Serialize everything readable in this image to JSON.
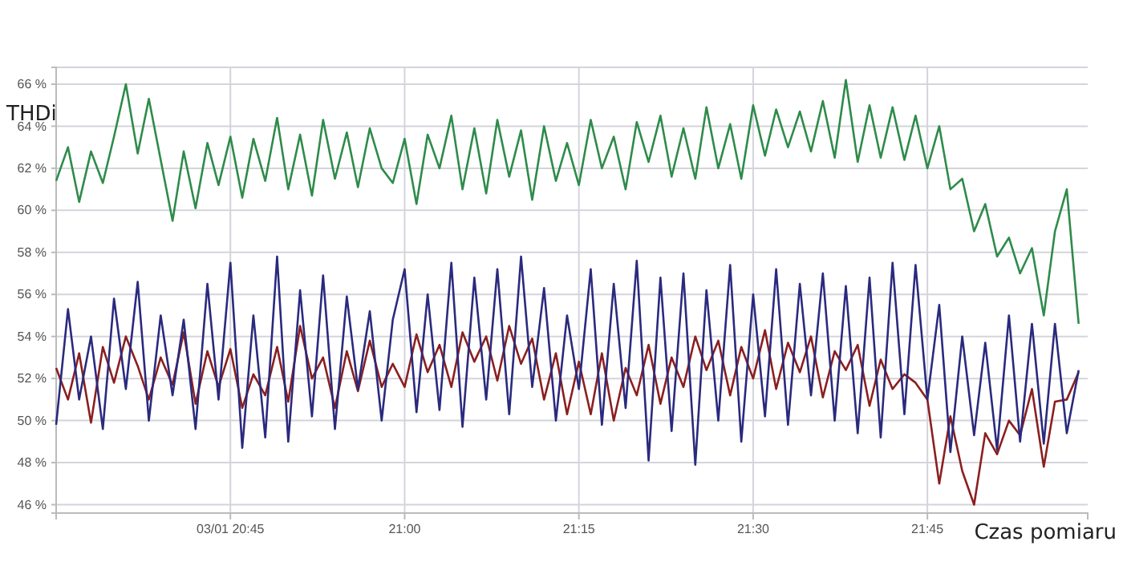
{
  "chart_data": {
    "type": "line",
    "ylabel": "THDi",
    "xlabel": "Czas pomiaru",
    "xlim": [
      20.5,
      21.98
    ],
    "ylim": [
      45.6,
      66.8
    ],
    "xticks": [
      {
        "value": 20.75,
        "label": "03/01 20:45"
      },
      {
        "value": 21,
        "label": "21:00"
      },
      {
        "value": 21.25,
        "label": "21:15"
      },
      {
        "value": 21.5,
        "label": "21:30"
      },
      {
        "value": 21.75,
        "label": "21:45"
      }
    ],
    "yticks": [
      {
        "value": 46,
        "label": "46 %"
      },
      {
        "value": 48,
        "label": "48 %"
      },
      {
        "value": 50,
        "label": "50 %"
      },
      {
        "value": 52,
        "label": "52 %"
      },
      {
        "value": 54,
        "label": "54 %"
      },
      {
        "value": 56,
        "label": "56 %"
      },
      {
        "value": 58,
        "label": "58 %"
      },
      {
        "value": 60,
        "label": "60 %"
      },
      {
        "value": 62,
        "label": "62 %"
      },
      {
        "value": 64,
        "label": "64 %"
      },
      {
        "value": 66,
        "label": "66 %"
      }
    ],
    "grid": true,
    "marker": "none",
    "line_style": "solid",
    "x": [
      20.5,
      20.517,
      20.533,
      20.55,
      20.567,
      20.583,
      20.6,
      20.617,
      20.633,
      20.65,
      20.667,
      20.683,
      20.7,
      20.717,
      20.733,
      20.75,
      20.767,
      20.783,
      20.8,
      20.817,
      20.833,
      20.85,
      20.867,
      20.883,
      20.9,
      20.917,
      20.933,
      20.95,
      20.967,
      20.983,
      21,
      21.017,
      21.033,
      21.05,
      21.067,
      21.083,
      21.1,
      21.117,
      21.133,
      21.15,
      21.167,
      21.183,
      21.2,
      21.217,
      21.233,
      21.25,
      21.267,
      21.283,
      21.3,
      21.317,
      21.333,
      21.35,
      21.367,
      21.383,
      21.4,
      21.417,
      21.433,
      21.45,
      21.467,
      21.483,
      21.5,
      21.517,
      21.533,
      21.55,
      21.567,
      21.583,
      21.6,
      21.617,
      21.633,
      21.65,
      21.667,
      21.683,
      21.7,
      21.717,
      21.733,
      21.75,
      21.767,
      21.783,
      21.8,
      21.817,
      21.833,
      21.85,
      21.867,
      21.883,
      21.9,
      21.917,
      21.933,
      21.95,
      21.967
    ],
    "series": [
      {
        "color": "#2e8b4a",
        "values": [
          61.4,
          63.0,
          60.4,
          62.8,
          61.3,
          63.5,
          66.0,
          62.7,
          65.3,
          62.4,
          59.5,
          62.8,
          60.1,
          63.2,
          61.2,
          63.5,
          60.6,
          63.4,
          61.4,
          64.4,
          61.0,
          63.6,
          60.7,
          64.3,
          61.5,
          63.7,
          61.1,
          63.9,
          62.0,
          61.3,
          63.4,
          60.3,
          63.6,
          62.0,
          64.5,
          61.0,
          63.9,
          60.8,
          64.3,
          61.6,
          63.8,
          60.5,
          64.0,
          61.4,
          63.2,
          61.2,
          64.3,
          62.0,
          63.5,
          61.0,
          64.2,
          62.3,
          64.5,
          61.6,
          63.9,
          61.5,
          64.9,
          62.0,
          64.1,
          61.5,
          65.0,
          62.6,
          64.8,
          63.0,
          64.7,
          62.8,
          65.2,
          62.5,
          66.2,
          62.3,
          65.0,
          62.5,
          64.9,
          62.4,
          64.5,
          62.0,
          64.0,
          61.0,
          61.5,
          59.0,
          60.3,
          57.8,
          58.7,
          57.0,
          58.2,
          55.0,
          59.0,
          61.0,
          54.6
        ]
      },
      {
        "color": "#8b1f1f",
        "values": [
          52.5,
          51.0,
          53.2,
          49.9,
          53.5,
          51.8,
          54.0,
          52.6,
          51.0,
          53.0,
          51.7,
          54.2,
          50.8,
          53.3,
          51.6,
          53.4,
          50.6,
          52.2,
          51.2,
          53.5,
          50.9,
          54.5,
          52.0,
          53.0,
          50.6,
          53.3,
          51.4,
          53.8,
          51.6,
          52.7,
          51.6,
          54.1,
          52.3,
          53.6,
          51.6,
          54.2,
          52.8,
          54.0,
          51.9,
          54.5,
          52.7,
          53.9,
          51.0,
          53.2,
          50.3,
          52.8,
          50.3,
          53.2,
          50.0,
          52.5,
          51.2,
          53.6,
          50.8,
          53.0,
          51.6,
          54.0,
          52.4,
          53.8,
          51.2,
          53.5,
          52.0,
          54.3,
          51.5,
          53.7,
          52.3,
          54.0,
          51.1,
          53.3,
          52.4,
          53.6,
          50.7,
          52.9,
          51.5,
          52.2,
          51.8,
          51.0,
          47.0,
          50.2,
          47.6,
          46.0,
          49.4,
          48.4,
          50.0,
          49.3,
          51.5,
          47.8,
          50.9,
          51.0,
          52.3
        ]
      },
      {
        "color": "#2a2a7e",
        "values": [
          49.8,
          55.3,
          51.0,
          54.0,
          49.6,
          55.8,
          51.5,
          56.6,
          50.0,
          55.0,
          51.2,
          54.8,
          49.6,
          56.5,
          51.0,
          57.5,
          48.7,
          55.0,
          49.2,
          57.8,
          49.0,
          56.2,
          50.2,
          56.9,
          49.6,
          55.9,
          51.5,
          55.2,
          50.0,
          54.8,
          57.2,
          50.4,
          56.0,
          50.5,
          57.5,
          49.7,
          56.8,
          51.0,
          57.2,
          50.3,
          57.8,
          51.6,
          56.3,
          50.0,
          55.0,
          51.5,
          57.2,
          49.8,
          56.5,
          50.6,
          57.6,
          48.1,
          56.8,
          49.5,
          57.0,
          47.9,
          56.2,
          50.0,
          57.4,
          49.0,
          56.0,
          50.2,
          57.2,
          49.8,
          56.5,
          51.2,
          57.0,
          50.0,
          56.4,
          49.4,
          56.8,
          49.2,
          57.5,
          50.3,
          57.4,
          51.0,
          55.5,
          48.5,
          54.0,
          49.3,
          53.7,
          48.6,
          55.0,
          49.0,
          54.6,
          48.9,
          54.6,
          49.4,
          52.4
        ]
      }
    ]
  }
}
